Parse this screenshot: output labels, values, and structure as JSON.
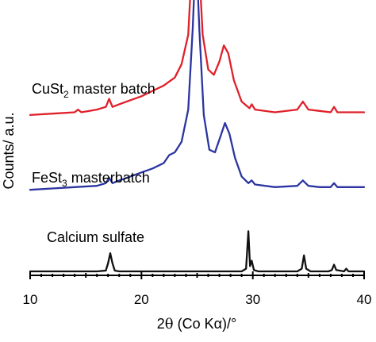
{
  "chart_data": {
    "type": "line",
    "xlabel_prefix": "2",
    "xlabel_theta": "θ",
    "xlabel_rest": " (Co Kα)/°",
    "ylabel": "Counts/ a.u.",
    "xlim": [
      10,
      40
    ],
    "xticks": [
      10,
      20,
      30,
      40
    ],
    "ylim": [
      0,
      1
    ],
    "y_ticks_labeled": false,
    "grid": false,
    "legend": "none",
    "series": [
      {
        "name_main": "CuSt",
        "name_sub": "2",
        "name_rest": " master batch",
        "color": "#e0202a",
        "offset": 0.585,
        "points": [
          [
            10,
            0.0
          ],
          [
            12,
            0.005
          ],
          [
            14,
            0.01
          ],
          [
            14.3,
            0.02
          ],
          [
            14.6,
            0.01
          ],
          [
            16,
            0.02
          ],
          [
            16.8,
            0.03
          ],
          [
            17.1,
            0.06
          ],
          [
            17.4,
            0.03
          ],
          [
            18,
            0.04
          ],
          [
            19,
            0.055
          ],
          [
            20,
            0.07
          ],
          [
            21,
            0.09
          ],
          [
            22,
            0.11
          ],
          [
            23,
            0.14
          ],
          [
            23.6,
            0.19
          ],
          [
            24.2,
            0.3
          ],
          [
            24.6,
            0.62
          ],
          [
            24.85,
            0.94
          ],
          [
            25.1,
            0.62
          ],
          [
            25.5,
            0.3
          ],
          [
            26,
            0.17
          ],
          [
            26.5,
            0.15
          ],
          [
            27,
            0.2
          ],
          [
            27.4,
            0.26
          ],
          [
            27.8,
            0.23
          ],
          [
            28.3,
            0.13
          ],
          [
            29,
            0.05
          ],
          [
            29.7,
            0.025
          ],
          [
            29.9,
            0.04
          ],
          [
            30.2,
            0.02
          ],
          [
            32,
            0.01
          ],
          [
            34,
            0.02
          ],
          [
            34.5,
            0.05
          ],
          [
            35,
            0.02
          ],
          [
            36,
            0.015
          ],
          [
            37,
            0.01
          ],
          [
            37.3,
            0.03
          ],
          [
            37.6,
            0.01
          ],
          [
            40,
            0.01
          ]
        ]
      },
      {
        "name_main": "FeSt",
        "name_sub": "3",
        "name_rest": " masterbatch",
        "color": "#2b35a0",
        "offset": 0.305,
        "points": [
          [
            10,
            0.0
          ],
          [
            12,
            0.005
          ],
          [
            14,
            0.01
          ],
          [
            16,
            0.015
          ],
          [
            16.8,
            0.025
          ],
          [
            17.1,
            0.045
          ],
          [
            17.4,
            0.025
          ],
          [
            18,
            0.035
          ],
          [
            19,
            0.05
          ],
          [
            20,
            0.065
          ],
          [
            21,
            0.08
          ],
          [
            22,
            0.1
          ],
          [
            22.5,
            0.13
          ],
          [
            23,
            0.14
          ],
          [
            23.6,
            0.18
          ],
          [
            24.2,
            0.3
          ],
          [
            24.6,
            0.6
          ],
          [
            24.9,
            0.905
          ],
          [
            25.2,
            0.6
          ],
          [
            25.6,
            0.28
          ],
          [
            26.1,
            0.15
          ],
          [
            26.6,
            0.14
          ],
          [
            27.1,
            0.2
          ],
          [
            27.5,
            0.25
          ],
          [
            27.9,
            0.21
          ],
          [
            28.4,
            0.12
          ],
          [
            29,
            0.05
          ],
          [
            29.6,
            0.025
          ],
          [
            29.9,
            0.035
          ],
          [
            30.2,
            0.02
          ],
          [
            32,
            0.01
          ],
          [
            34,
            0.015
          ],
          [
            34.5,
            0.035
          ],
          [
            35,
            0.015
          ],
          [
            36,
            0.01
          ],
          [
            37,
            0.01
          ],
          [
            37.3,
            0.025
          ],
          [
            37.6,
            0.01
          ],
          [
            40,
            0.01
          ]
        ]
      },
      {
        "name_main": "Calcium sulfate",
        "name_sub": "",
        "name_rest": "",
        "color": "#111111",
        "offset": 0.0,
        "points": [
          [
            10,
            0.0
          ],
          [
            16,
            0.0
          ],
          [
            16.8,
            0.003
          ],
          [
            17.0,
            0.03
          ],
          [
            17.2,
            0.068
          ],
          [
            17.4,
            0.03
          ],
          [
            17.6,
            0.003
          ],
          [
            18,
            0.0
          ],
          [
            25,
            0.0
          ],
          [
            29,
            0.0
          ],
          [
            29.4,
            0.01
          ],
          [
            29.6,
            0.15
          ],
          [
            29.75,
            0.02
          ],
          [
            29.9,
            0.04
          ],
          [
            30.1,
            0.005
          ],
          [
            30.5,
            0.0
          ],
          [
            34,
            0.0
          ],
          [
            34.4,
            0.01
          ],
          [
            34.6,
            0.06
          ],
          [
            34.8,
            0.01
          ],
          [
            35.2,
            0.0
          ],
          [
            36.8,
            0.0
          ],
          [
            37.1,
            0.005
          ],
          [
            37.3,
            0.025
          ],
          [
            37.5,
            0.005
          ],
          [
            38.2,
            0.0
          ],
          [
            38.4,
            0.01
          ],
          [
            38.6,
            0.0
          ],
          [
            40,
            0.0
          ]
        ]
      }
    ]
  }
}
